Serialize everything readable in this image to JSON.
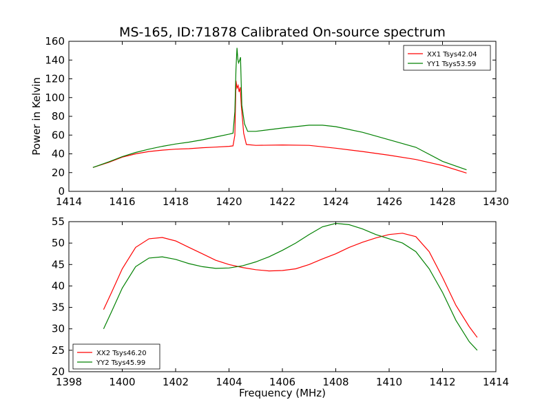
{
  "title": "MS-165, ID:71878 Calibrated On-source spectrum",
  "xlabel": "Frequency (MHz)",
  "chart_data": [
    {
      "type": "line",
      "ylabel": "Power in Kelvin",
      "xlim": [
        1414,
        1430
      ],
      "ylim": [
        0,
        160
      ],
      "xticks": [
        1414,
        1416,
        1418,
        1420,
        1422,
        1424,
        1426,
        1428,
        1430
      ],
      "yticks": [
        0,
        20,
        40,
        60,
        80,
        100,
        120,
        140,
        160
      ],
      "legend_position": "top-right",
      "series": [
        {
          "name": "XX1 Tsys42.04",
          "color": "#ff0000",
          "x": [
            1414.9,
            1415.5,
            1416.0,
            1416.5,
            1417.0,
            1417.5,
            1418.0,
            1418.5,
            1419.0,
            1419.5,
            1420.0,
            1420.15,
            1420.22,
            1420.26,
            1420.3,
            1420.34,
            1420.38,
            1420.42,
            1420.46,
            1420.55,
            1420.65,
            1421.0,
            1422.0,
            1423.0,
            1424.0,
            1425.0,
            1426.0,
            1427.0,
            1428.0,
            1428.9
          ],
          "y": [
            25.5,
            31,
            36.5,
            40,
            42.5,
            44,
            45,
            45.5,
            46.5,
            47.2,
            48,
            48.5,
            60,
            118,
            110,
            113,
            106,
            111,
            92,
            62,
            50,
            49,
            49.5,
            49,
            46,
            42.5,
            38.5,
            34,
            27.5,
            19.5
          ]
        },
        {
          "name": "YY1 Tsys53.59",
          "color": "#008000",
          "x": [
            1414.9,
            1415.5,
            1416.0,
            1416.5,
            1417.0,
            1417.5,
            1418.0,
            1418.5,
            1419.0,
            1419.5,
            1420.0,
            1420.15,
            1420.22,
            1420.26,
            1420.3,
            1420.33,
            1420.36,
            1420.4,
            1420.43,
            1420.48,
            1420.58,
            1420.7,
            1421.0,
            1422.0,
            1423.0,
            1423.5,
            1424.0,
            1425.0,
            1426.0,
            1427.0,
            1428.0,
            1428.9
          ],
          "y": [
            25.5,
            31.5,
            37,
            41.5,
            45,
            48,
            50.5,
            52.5,
            55,
            58,
            61,
            62,
            85,
            130,
            153,
            141,
            137,
            140,
            143,
            92,
            72,
            64,
            64,
            67.5,
            70.5,
            70.5,
            69,
            63,
            55,
            47,
            32,
            23
          ]
        }
      ]
    },
    {
      "type": "line",
      "ylabel": "",
      "xlim": [
        1398,
        1414
      ],
      "ylim": [
        20,
        55
      ],
      "xticks": [
        1398,
        1400,
        1402,
        1404,
        1406,
        1408,
        1410,
        1412,
        1414
      ],
      "yticks": [
        20,
        25,
        30,
        35,
        40,
        45,
        50,
        55
      ],
      "legend_position": "bottom-left",
      "series": [
        {
          "name": "XX2 Tsys46.20",
          "color": "#ff0000",
          "x": [
            1399.3,
            1399.6,
            1400.0,
            1400.5,
            1401.0,
            1401.5,
            1402.0,
            1402.5,
            1403.0,
            1403.5,
            1404.0,
            1404.5,
            1405.0,
            1405.5,
            1406.0,
            1406.5,
            1407.0,
            1407.5,
            1408.0,
            1408.5,
            1409.0,
            1409.5,
            1410.0,
            1410.5,
            1411.0,
            1411.5,
            1412.0,
            1412.5,
            1413.0,
            1413.3
          ],
          "y": [
            34.5,
            38.5,
            44,
            49,
            51,
            51.3,
            50.5,
            49,
            47.5,
            46,
            45,
            44.3,
            43.8,
            43.5,
            43.6,
            44,
            45,
            46.3,
            47.5,
            49,
            50.2,
            51.2,
            52,
            52.3,
            51.5,
            48,
            42,
            35.5,
            30.5,
            28
          ]
        },
        {
          "name": "YY2 Tsys45.99",
          "color": "#008000",
          "x": [
            1399.3,
            1399.6,
            1400.0,
            1400.5,
            1401.0,
            1401.5,
            1402.0,
            1402.5,
            1403.0,
            1403.5,
            1404.0,
            1404.5,
            1405.0,
            1405.5,
            1406.0,
            1406.5,
            1407.0,
            1407.5,
            1408.0,
            1408.5,
            1409.0,
            1409.5,
            1410.0,
            1410.5,
            1411.0,
            1411.5,
            1412.0,
            1412.5,
            1413.0,
            1413.3
          ],
          "y": [
            30,
            34,
            39.5,
            44.5,
            46.5,
            46.8,
            46.2,
            45.2,
            44.5,
            44.1,
            44.2,
            44.7,
            45.6,
            46.8,
            48.3,
            50,
            52,
            53.8,
            54.6,
            54.3,
            53.3,
            52,
            51,
            50,
            48,
            44,
            38.5,
            32,
            27,
            25
          ]
        }
      ]
    }
  ]
}
